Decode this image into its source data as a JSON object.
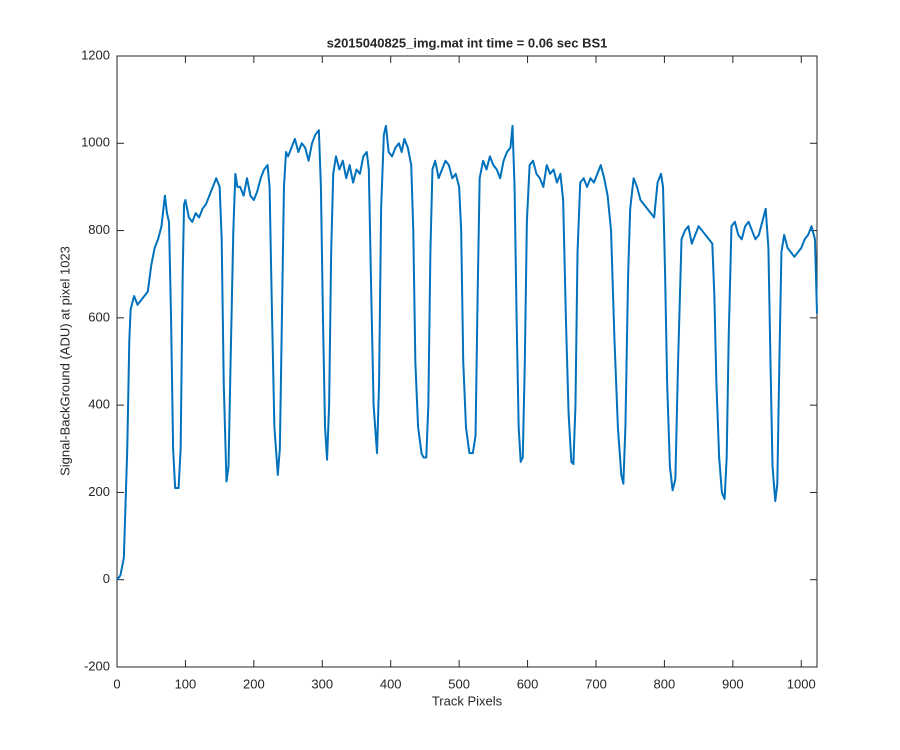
{
  "chart_data": {
    "type": "line",
    "title": "s2015040825_img.mat int time = 0.06 sec   BS1",
    "xlabel": "Track Pixels",
    "ylabel": "Signal-BackGround (ADU) at pixel 1023",
    "xlim": [
      0,
      1023
    ],
    "xticks": [
      0,
      100,
      200,
      300,
      400,
      500,
      600,
      700,
      800,
      900,
      1000
    ],
    "ylim": [
      -200,
      1200
    ],
    "yticks": [
      -200,
      0,
      200,
      400,
      600,
      800,
      1000,
      1200
    ],
    "series": [
      {
        "color": "#0072bd",
        "x": [
          0,
          5,
          10,
          15,
          18,
          20,
          25,
          30,
          35,
          40,
          45,
          50,
          55,
          60,
          65,
          70,
          73,
          76,
          79,
          82,
          85,
          90,
          93,
          96,
          98,
          100,
          105,
          110,
          115,
          120,
          125,
          130,
          135,
          140,
          145,
          150,
          153,
          156,
          160,
          163,
          166,
          170,
          173,
          176,
          180,
          185,
          190,
          195,
          200,
          205,
          210,
          215,
          220,
          223,
          226,
          230,
          235,
          238,
          241,
          244,
          247,
          250,
          255,
          260,
          265,
          270,
          275,
          280,
          285,
          290,
          295,
          298,
          301,
          304,
          307,
          310,
          313,
          316,
          320,
          325,
          330,
          335,
          340,
          345,
          350,
          355,
          360,
          365,
          368,
          371,
          375,
          380,
          383,
          386,
          390,
          393,
          397,
          402,
          407,
          412,
          416,
          420,
          425,
          430,
          433,
          436,
          440,
          445,
          448,
          452,
          455,
          458,
          461,
          465,
          470,
          475,
          480,
          485,
          490,
          495,
          500,
          503,
          506,
          510,
          515,
          520,
          524,
          527,
          530,
          535,
          540,
          545,
          550,
          555,
          560,
          565,
          570,
          575,
          578,
          581,
          584,
          587,
          590,
          593,
          596,
          599,
          603,
          608,
          613,
          618,
          623,
          628,
          633,
          638,
          643,
          648,
          652,
          656,
          660,
          664,
          667,
          670,
          673,
          677,
          682,
          687,
          692,
          697,
          702,
          707,
          712,
          717,
          722,
          727,
          732,
          737,
          740,
          743,
          747,
          750,
          755,
          760,
          765,
          770,
          775,
          780,
          785,
          790,
          795,
          798,
          801,
          804,
          808,
          812,
          816,
          820,
          825,
          830,
          835,
          840,
          845,
          850,
          855,
          860,
          865,
          870,
          873,
          876,
          880,
          884,
          888,
          891,
          894,
          898,
          903,
          908,
          913,
          918,
          923,
          928,
          933,
          938,
          943,
          948,
          952,
          955,
          958,
          962,
          965,
          968,
          971,
          975,
          980,
          985,
          990,
          995,
          1000,
          1005,
          1010,
          1015,
          1020,
          1023
        ],
        "values": [
          0,
          10,
          50,
          300,
          550,
          620,
          650,
          630,
          640,
          650,
          660,
          720,
          760,
          780,
          810,
          880,
          840,
          820,
          600,
          300,
          210,
          210,
          300,
          700,
          860,
          870,
          830,
          820,
          840,
          830,
          850,
          860,
          880,
          900,
          920,
          900,
          780,
          450,
          225,
          260,
          500,
          800,
          930,
          900,
          900,
          880,
          920,
          880,
          870,
          890,
          920,
          940,
          950,
          900,
          650,
          350,
          240,
          300,
          600,
          900,
          980,
          970,
          990,
          1010,
          980,
          1000,
          990,
          960,
          1000,
          1020,
          1030,
          900,
          600,
          350,
          275,
          400,
          750,
          930,
          970,
          940,
          960,
          920,
          950,
          910,
          940,
          930,
          970,
          980,
          940,
          700,
          400,
          290,
          450,
          850,
          1020,
          1040,
          980,
          970,
          990,
          1000,
          980,
          1010,
          990,
          950,
          800,
          500,
          350,
          290,
          280,
          280,
          400,
          750,
          940,
          960,
          920,
          940,
          960,
          950,
          920,
          930,
          900,
          800,
          500,
          350,
          290,
          290,
          330,
          650,
          920,
          960,
          940,
          970,
          950,
          940,
          920,
          960,
          980,
          990,
          1040,
          900,
          600,
          350,
          270,
          280,
          500,
          820,
          950,
          960,
          930,
          920,
          900,
          950,
          930,
          940,
          910,
          930,
          870,
          600,
          380,
          270,
          265,
          400,
          750,
          910,
          920,
          900,
          920,
          910,
          930,
          950,
          920,
          880,
          800,
          550,
          350,
          240,
          220,
          350,
          700,
          850,
          920,
          900,
          870,
          860,
          850,
          840,
          830,
          910,
          930,
          900,
          700,
          450,
          260,
          205,
          230,
          500,
          780,
          800,
          810,
          770,
          790,
          810,
          800,
          790,
          780,
          770,
          650,
          450,
          280,
          200,
          185,
          280,
          560,
          810,
          820,
          790,
          780,
          810,
          820,
          800,
          780,
          790,
          820,
          850,
          760,
          500,
          260,
          180,
          220,
          500,
          750,
          790,
          760,
          750,
          740,
          750,
          760,
          780,
          790,
          810,
          780,
          610
        ]
      }
    ]
  }
}
